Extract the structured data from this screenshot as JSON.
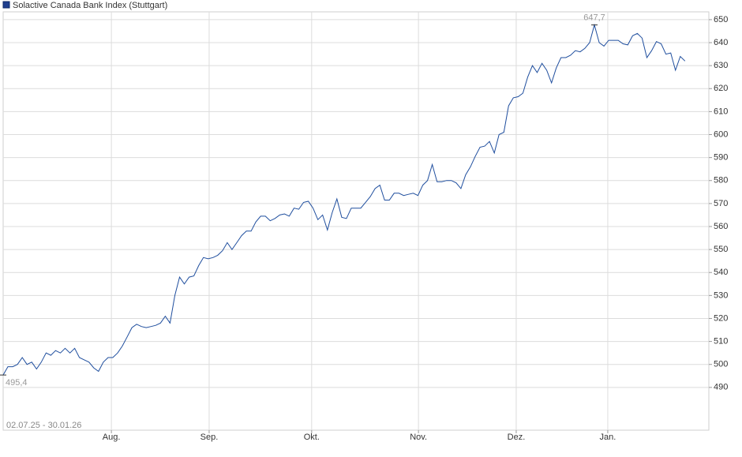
{
  "chart_data": {
    "type": "line",
    "title": "Solactive Canada Bank Index (Stuttgart)",
    "date_range": "02.07.25 - 30.01.26",
    "annotations": [
      "647,7",
      "495,4"
    ],
    "series": [
      {
        "name": "Solactive Canada Bank Index (Stuttgart)",
        "color": "#1f4e9e",
        "values": [
          495.4,
          499,
          499,
          500,
          503,
          500,
          501,
          498,
          501,
          505,
          504,
          506,
          505,
          507,
          505,
          507,
          503,
          502,
          501,
          498.5,
          497,
          501,
          503,
          503,
          505,
          508,
          512,
          516,
          517.5,
          516.5,
          516,
          516.5,
          517,
          518,
          521,
          518,
          530,
          538,
          535,
          538,
          538.5,
          543,
          546.5,
          546,
          546.5,
          547.5,
          549.5,
          553,
          550,
          553,
          556,
          558,
          558,
          562,
          564.5,
          564.5,
          562.5,
          563.5,
          565,
          565.5,
          564.5,
          568,
          567.5,
          570.5,
          571,
          568,
          563,
          565,
          558.5,
          566,
          572,
          564,
          563.5,
          568,
          568,
          568,
          570.5,
          573,
          576.5,
          578,
          571.5,
          571.5,
          574.5,
          574.5,
          573.5,
          574,
          574.5,
          573.5,
          578,
          580,
          587,
          579.5,
          579.5,
          580,
          580,
          579,
          576.5,
          582.5,
          586,
          590.5,
          594.5,
          595,
          597,
          592,
          600,
          601,
          612.5,
          616,
          616.5,
          618,
          625,
          630,
          627,
          631,
          628,
          622.5,
          629,
          633.5,
          633.5,
          634.5,
          636.5,
          636,
          637.5,
          640,
          647.7,
          640,
          638.5,
          641,
          641,
          641,
          639.5,
          639,
          643,
          644,
          642,
          633.5,
          636.5,
          640.5,
          639.5,
          635,
          635.5,
          628,
          634,
          632
        ]
      }
    ],
    "xlim": [
      0,
      148
    ],
    "xticks": [
      {
        "value": 22.7,
        "label": "Aug."
      },
      {
        "value": 43.2,
        "label": "Sep."
      },
      {
        "value": 64.7,
        "label": "Okt."
      },
      {
        "value": 87.1,
        "label": "Nov."
      },
      {
        "value": 107.6,
        "label": "Dez."
      },
      {
        "value": 126.8,
        "label": "Jan."
      }
    ],
    "ylim": [
      471.4,
      653.4
    ],
    "yticks": [
      490,
      500,
      510,
      520,
      530,
      540,
      550,
      560,
      570,
      580,
      590,
      600,
      610,
      620,
      630,
      640,
      650
    ],
    "grid": true
  }
}
